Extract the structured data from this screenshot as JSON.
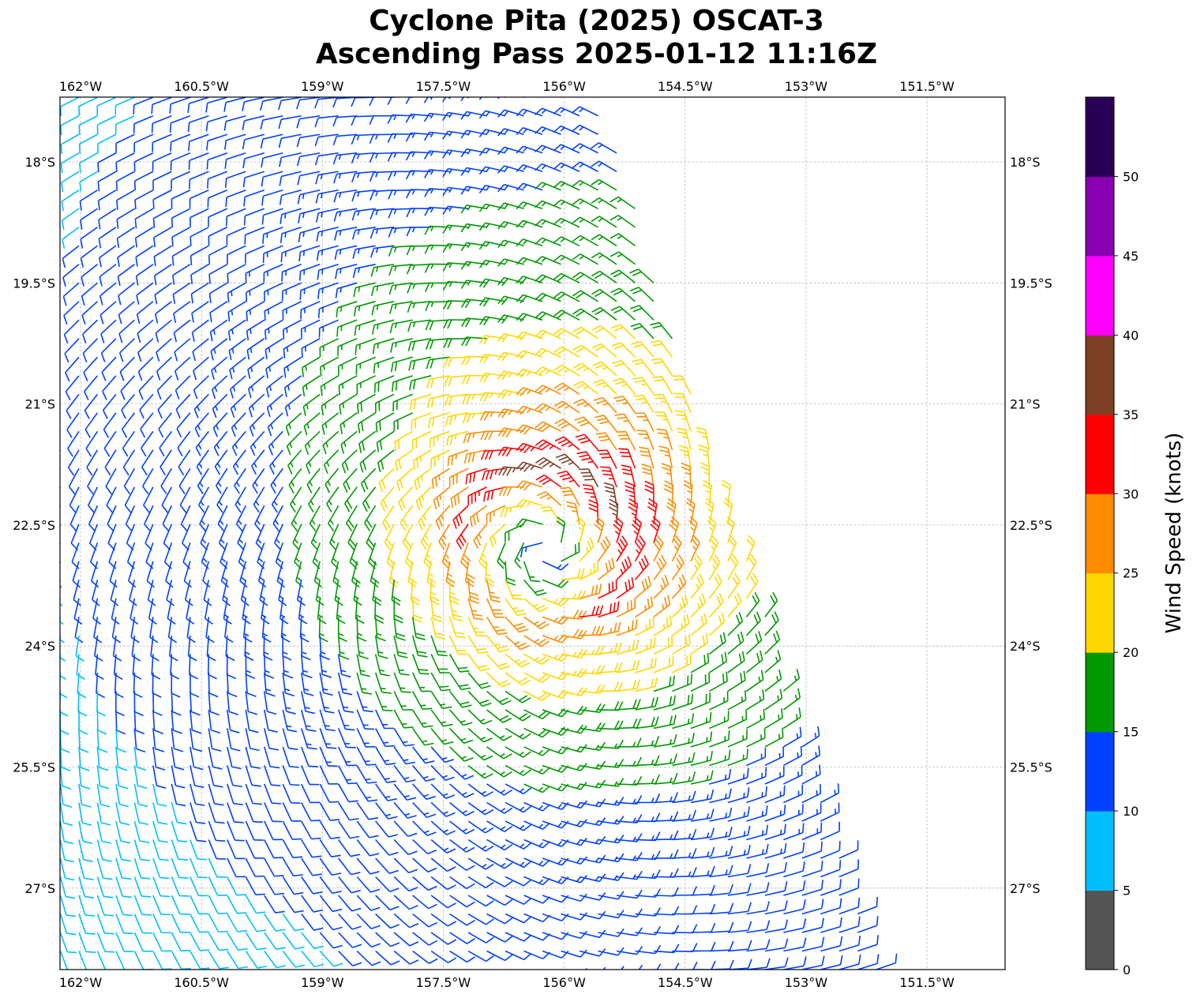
{
  "chart_data": {
    "type": "wind_barb_map",
    "title": [
      "Cyclone Pita (2025) OSCAT-3",
      "Ascending Pass 2025-01-12 11:16Z"
    ],
    "xlabel": "",
    "ylabel": "",
    "lon_ticks": [
      162,
      160.5,
      159,
      157.5,
      156,
      154.5,
      153,
      151.5
    ],
    "lon_tick_labels": [
      "162°W",
      "160.5°W",
      "159°W",
      "157.5°W",
      "156°W",
      "154.5°W",
      "153°W",
      "151.5°W"
    ],
    "lat_ticks": [
      18,
      19.5,
      21,
      22.5,
      24,
      25.5,
      27
    ],
    "lat_tick_labels": [
      "18°S",
      "19.5°S",
      "21°S",
      "22.5°S",
      "24°S",
      "25.5°S",
      "27°S"
    ],
    "lon_range_west": [
      162.25,
      150.53
    ],
    "lat_range_south": [
      17.2,
      28.0
    ],
    "grid": true,
    "colorbar": {
      "label": "Wind Speed (knots)",
      "levels": [
        0,
        5,
        10,
        15,
        20,
        25,
        30,
        35,
        40,
        45,
        50,
        55
      ],
      "tick_labels": [
        "0",
        "5",
        "10",
        "15",
        "20",
        "25",
        "30",
        "35",
        "40",
        "45",
        "50"
      ],
      "colors": [
        "#555555",
        "#00bfff",
        "#0040ff",
        "#009900",
        "#ffd700",
        "#ff8c00",
        "#ff0000",
        "#7f3f25",
        "#ff00ff",
        "#8800b0",
        "#2a0057"
      ]
    },
    "cyclone": {
      "center_lon_w": 156.25,
      "center_lat_s": 22.75,
      "max_wind_kt": 33,
      "radius_max_wind_deg": 1.0,
      "rotation": "clockwise"
    },
    "swath": {
      "east_edge_top": {
        "lon_w": 155.55,
        "lat_s": 17.2
      },
      "east_edge_bottom": {
        "lon_w": 152.12,
        "lat_s": 28.0
      },
      "spacing_deg": 0.23
    }
  }
}
